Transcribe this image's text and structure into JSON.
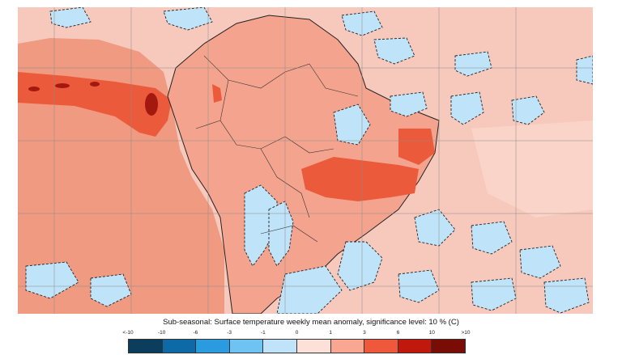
{
  "caption": "Sub-seasonal: Surface temperature weekly mean anomaly, significance level: 10 % (C)",
  "legend": {
    "ticks": [
      "<-10",
      "-10",
      "-6",
      "-3",
      "-1",
      "0",
      "1",
      "3",
      "6",
      "10",
      ">10"
    ],
    "colors": [
      "#0b3d5c",
      "#0d6aa6",
      "#2b9be0",
      "#6ec3f3",
      "#bfe3f8",
      "#ffffff",
      "#fde0d8",
      "#f9a793",
      "#f0583c",
      "#c0180d",
      "#7a0c06"
    ]
  },
  "map": {
    "ocean_color": "#f7c9bd",
    "land_color": "#f4a48e",
    "hotspot_color": "#ec5a3c",
    "extreme_color": "#c41e12",
    "cold_color": "#bfe3f8",
    "gridline_color": "#8a8a8a",
    "coastline_color": "#222222"
  }
}
